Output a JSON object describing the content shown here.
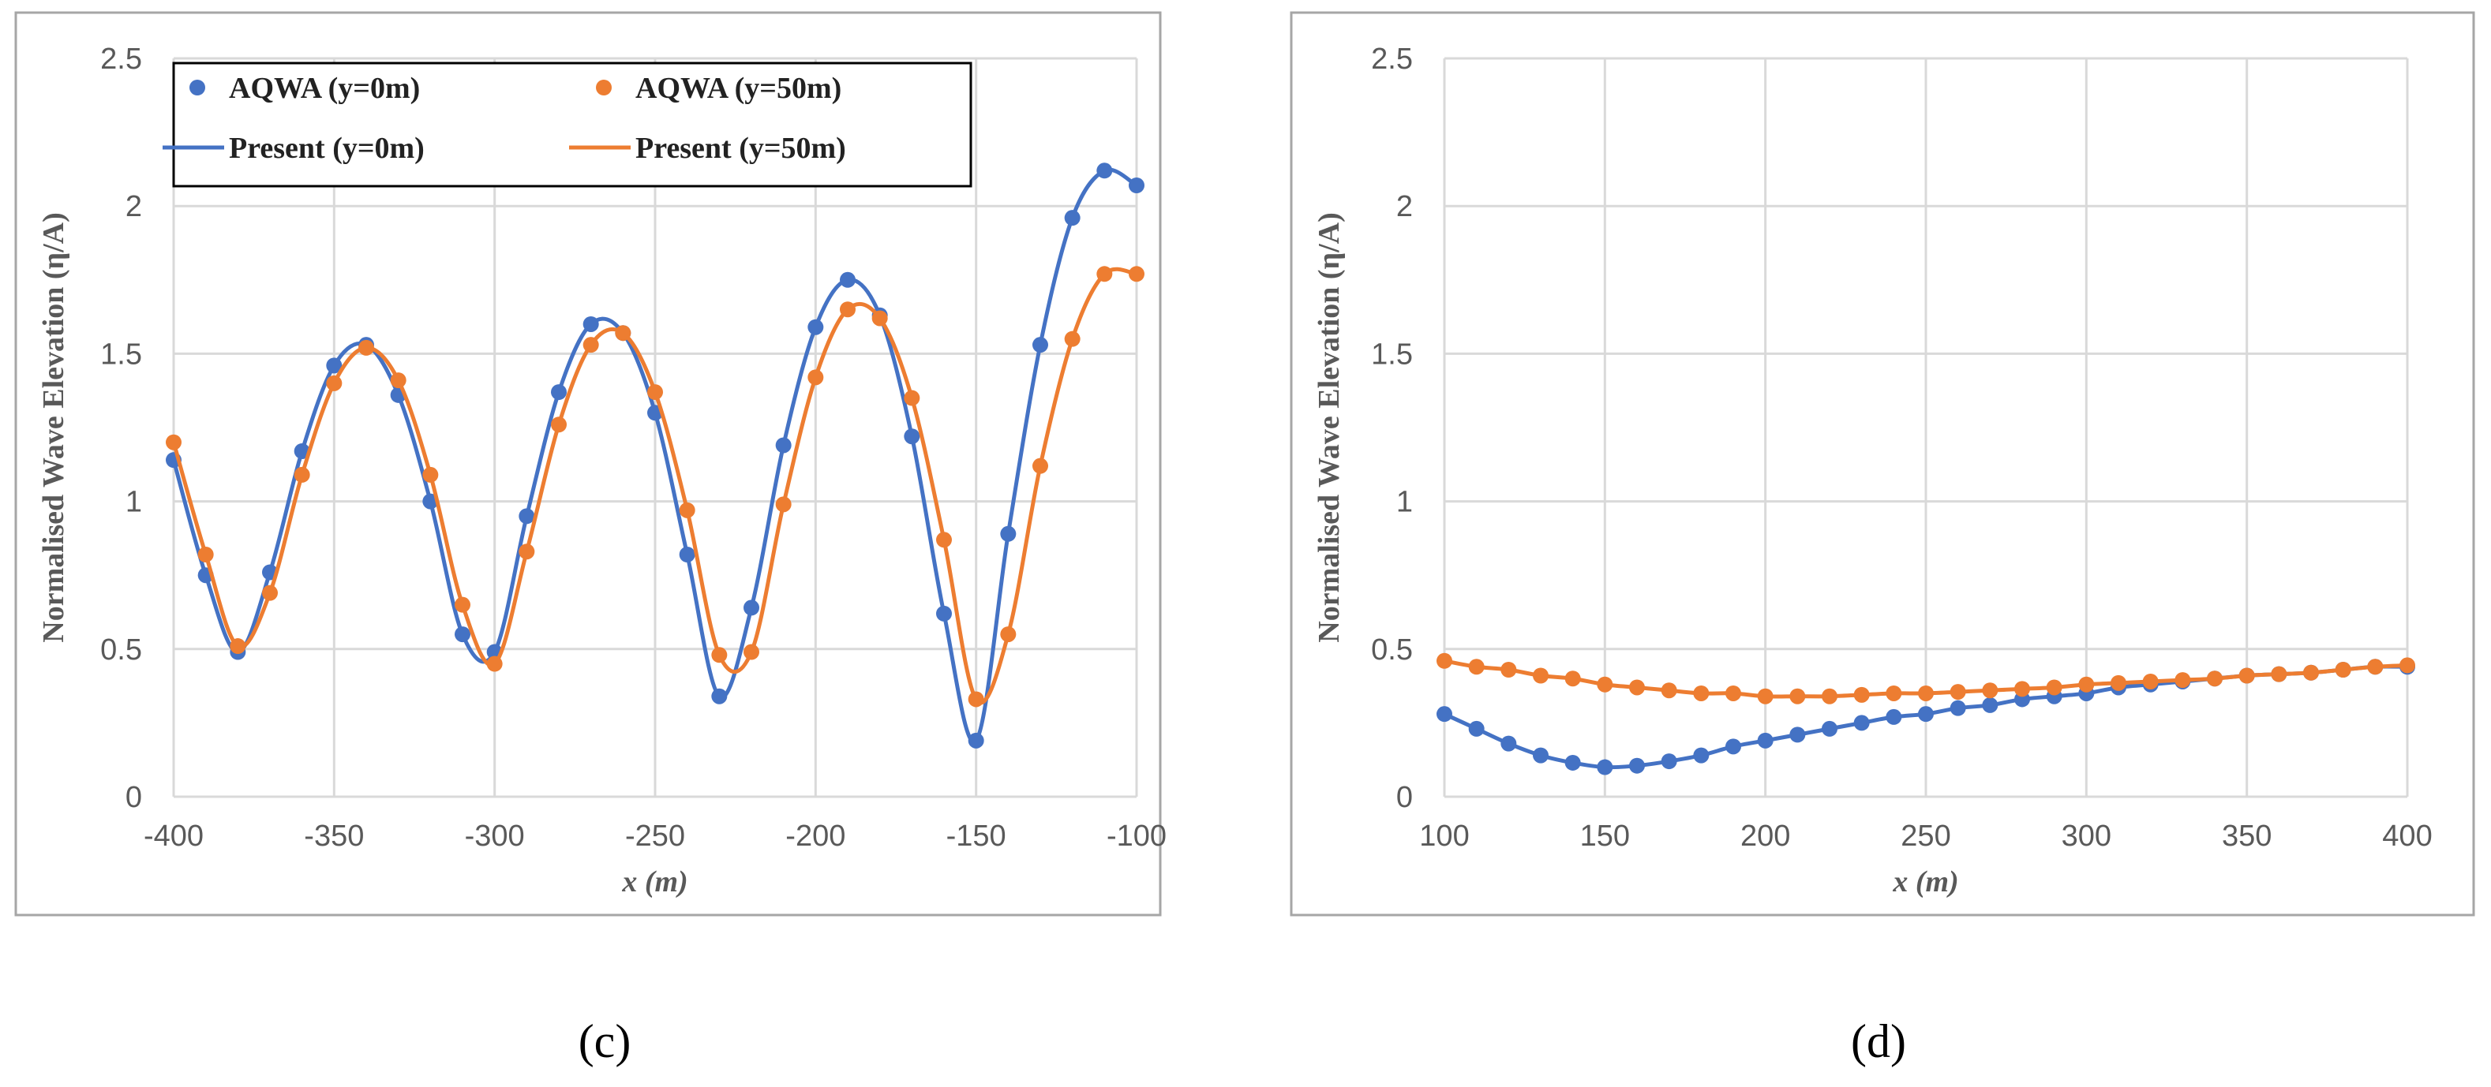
{
  "colors": {
    "blue": "#4472C4",
    "orange": "#ED7D31",
    "grid": "#D9D9D9",
    "frame": "#A6A6A6"
  },
  "chart_data": [
    {
      "type": "line",
      "caption": "(c)",
      "xlabel": "x (m)",
      "ylabel": "Normalised Wave Elevation (η/A)",
      "xlim": [
        -400,
        -100
      ],
      "ylim": [
        0,
        2.5
      ],
      "xticks": [
        "-400",
        "-350",
        "-300",
        "-250",
        "-200",
        "-150",
        "-100"
      ],
      "yticks": [
        "0",
        "0.5",
        "1",
        "1.5",
        "2",
        "2.5"
      ],
      "grid": true,
      "legend": {
        "placement": "top-left",
        "entries": [
          "AQWA (y=0m)",
          "AQWA (y=50m)",
          "Present (y=0m)",
          "Present (y=50m)"
        ]
      },
      "x": [
        -400,
        -390,
        -380,
        -370,
        -360,
        -350,
        -340,
        -330,
        -320,
        -310,
        -300,
        -290,
        -280,
        -270,
        -260,
        -250,
        -240,
        -230,
        -220,
        -210,
        -200,
        -190,
        -180,
        -170,
        -160,
        -150,
        -140,
        -130,
        -120,
        -110,
        -100
      ],
      "series": [
        {
          "name": "AQWA (y=0m)",
          "color": "blue",
          "values": [
            1.14,
            0.75,
            0.49,
            0.76,
            1.17,
            1.46,
            1.53,
            1.36,
            1.0,
            0.55,
            0.49,
            0.95,
            1.37,
            1.6,
            1.57,
            1.3,
            0.82,
            0.34,
            0.64,
            1.19,
            1.59,
            1.75,
            1.63,
            1.22,
            0.62,
            0.19,
            0.89,
            1.53,
            1.96,
            2.12,
            2.07
          ]
        },
        {
          "name": "AQWA (y=50m)",
          "color": "orange",
          "values": [
            1.2,
            0.82,
            0.51,
            0.69,
            1.09,
            1.4,
            1.52,
            1.41,
            1.09,
            0.65,
            0.45,
            0.83,
            1.26,
            1.53,
            1.57,
            1.37,
            0.97,
            0.48,
            0.49,
            0.99,
            1.42,
            1.65,
            1.62,
            1.35,
            0.87,
            0.33,
            0.55,
            1.12,
            1.55,
            1.77,
            1.77
          ]
        }
      ]
    },
    {
      "type": "line",
      "caption": "(d)",
      "xlabel": "x (m)",
      "ylabel": "Normalised Wave Elevation (η/A)",
      "xlim": [
        100,
        400
      ],
      "ylim": [
        0,
        2.5
      ],
      "xticks": [
        "100",
        "150",
        "200",
        "250",
        "300",
        "350",
        "400"
      ],
      "yticks": [
        "0",
        "0.5",
        "1",
        "1.5",
        "2",
        "2.5"
      ],
      "grid": true,
      "x": [
        100,
        110,
        120,
        130,
        140,
        150,
        160,
        170,
        180,
        190,
        200,
        210,
        220,
        230,
        240,
        250,
        260,
        270,
        280,
        290,
        300,
        310,
        320,
        330,
        340,
        350,
        360,
        370,
        380,
        390,
        400
      ],
      "series": [
        {
          "name": "AQWA (y=0m)",
          "color": "blue",
          "values": [
            0.28,
            0.23,
            0.18,
            0.14,
            0.115,
            0.1,
            0.105,
            0.12,
            0.14,
            0.17,
            0.19,
            0.21,
            0.23,
            0.25,
            0.27,
            0.28,
            0.3,
            0.31,
            0.33,
            0.34,
            0.35,
            0.37,
            0.38,
            0.39,
            0.4,
            0.41,
            0.415,
            0.42,
            0.43,
            0.44,
            0.44
          ]
        },
        {
          "name": "AQWA (y=50m)",
          "color": "orange",
          "values": [
            0.46,
            0.44,
            0.43,
            0.41,
            0.4,
            0.38,
            0.37,
            0.36,
            0.35,
            0.35,
            0.34,
            0.34,
            0.34,
            0.345,
            0.35,
            0.35,
            0.355,
            0.36,
            0.365,
            0.37,
            0.38,
            0.385,
            0.39,
            0.395,
            0.4,
            0.41,
            0.415,
            0.42,
            0.43,
            0.44,
            0.445
          ]
        }
      ]
    }
  ]
}
